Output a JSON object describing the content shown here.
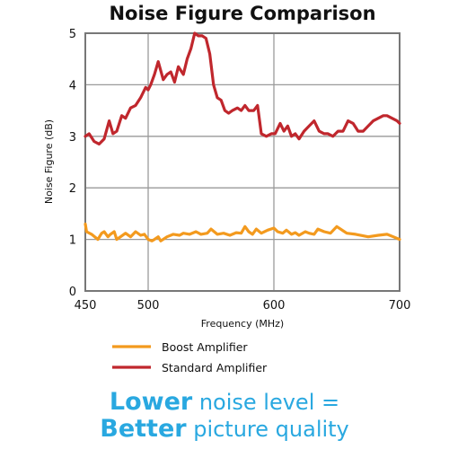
{
  "chart_data": {
    "type": "line",
    "title": "Noise Figure Comparison",
    "xlabel": "Frequency (MHz)",
    "ylabel": "Noise Figure (dB)",
    "xlim": [
      450,
      700
    ],
    "ylim": [
      0,
      5
    ],
    "xticks": [
      450,
      500,
      600,
      700
    ],
    "yticks": [
      0,
      1,
      2,
      3,
      4,
      5
    ],
    "grid": true,
    "legend_position": "bottom",
    "series": [
      {
        "name": "Boost Amplifier",
        "color": "#f39a1e",
        "x": [
          450,
          451,
          455,
          460,
          463,
          465,
          468,
          470,
          473,
          475,
          478,
          482,
          486,
          490,
          494,
          497,
          500,
          503,
          505,
          508,
          510,
          515,
          520,
          525,
          528,
          533,
          538,
          542,
          547,
          550,
          555,
          560,
          565,
          570,
          574,
          577,
          580,
          583,
          586,
          590,
          595,
          600,
          603,
          607,
          610,
          614,
          617,
          620,
          625,
          628,
          632,
          635,
          640,
          645,
          650,
          653,
          658,
          665,
          675,
          683,
          690,
          695,
          700
        ],
        "values": [
          1.3,
          1.15,
          1.1,
          1.0,
          1.12,
          1.15,
          1.05,
          1.1,
          1.15,
          1.0,
          1.05,
          1.12,
          1.05,
          1.15,
          1.08,
          1.1,
          1.0,
          0.97,
          1.0,
          1.05,
          0.97,
          1.05,
          1.1,
          1.08,
          1.12,
          1.1,
          1.15,
          1.1,
          1.12,
          1.2,
          1.1,
          1.12,
          1.08,
          1.13,
          1.12,
          1.25,
          1.15,
          1.1,
          1.2,
          1.12,
          1.18,
          1.22,
          1.15,
          1.12,
          1.18,
          1.1,
          1.13,
          1.08,
          1.15,
          1.12,
          1.1,
          1.2,
          1.15,
          1.12,
          1.25,
          1.2,
          1.12,
          1.1,
          1.05,
          1.08,
          1.1,
          1.05,
          1.0
        ]
      },
      {
        "name": "Standard Amplifier",
        "color": "#c0272d",
        "x": [
          450,
          453,
          457,
          461,
          465,
          469,
          472,
          475,
          479,
          482,
          486,
          490,
          494,
          498,
          500,
          502,
          505,
          508,
          512,
          515,
          518,
          521,
          524,
          528,
          531,
          534,
          537,
          540,
          543,
          546,
          549,
          552,
          555,
          558,
          561,
          564,
          567,
          571,
          574,
          577,
          580,
          584,
          587,
          590,
          594,
          598,
          601,
          605,
          608,
          611,
          614,
          617,
          620,
          624,
          628,
          632,
          636,
          640,
          643,
          647,
          651,
          655,
          659,
          663,
          667,
          671,
          675,
          679,
          683,
          687,
          690,
          694,
          698,
          700
        ],
        "values": [
          3.0,
          3.05,
          2.9,
          2.85,
          2.95,
          3.3,
          3.05,
          3.1,
          3.4,
          3.35,
          3.55,
          3.6,
          3.75,
          3.95,
          3.9,
          4.0,
          4.2,
          4.45,
          4.1,
          4.2,
          4.25,
          4.05,
          4.35,
          4.2,
          4.5,
          4.7,
          5.0,
          4.95,
          4.95,
          4.9,
          4.6,
          4.0,
          3.75,
          3.7,
          3.5,
          3.45,
          3.5,
          3.55,
          3.5,
          3.6,
          3.5,
          3.5,
          3.6,
          3.05,
          3.0,
          3.05,
          3.05,
          3.25,
          3.1,
          3.2,
          3.0,
          3.05,
          2.95,
          3.1,
          3.2,
          3.3,
          3.1,
          3.05,
          3.05,
          3.0,
          3.1,
          3.1,
          3.3,
          3.25,
          3.1,
          3.1,
          3.2,
          3.3,
          3.35,
          3.4,
          3.4,
          3.35,
          3.3,
          3.25
        ]
      }
    ]
  },
  "footer": {
    "line1_strong": "Lower",
    "line1_rest": " noise level =",
    "line2_strong": "Better",
    "line2_rest": " picture quality"
  }
}
